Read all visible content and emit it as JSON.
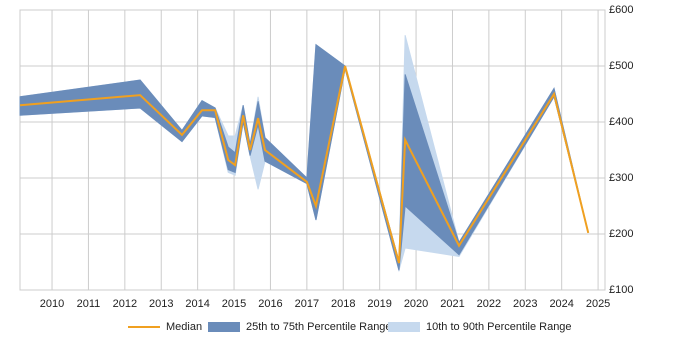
{
  "chart_data": {
    "type": "line",
    "x": [
      2009.12,
      2012.42,
      2013.57,
      2014.12,
      2014.48,
      2014.84,
      2015.03,
      2015.25,
      2015.44,
      2015.66,
      2015.85,
      2017.0,
      2017.25,
      2018.05,
      2019.53,
      2019.7,
      2021.18,
      2023.79,
      2024.73
    ],
    "series": [
      {
        "name": "10th to 90th Percentile Range",
        "color": "#c6d9ee",
        "lower": [
          412,
          425,
          365,
          411,
          408,
          310,
          305,
          400,
          340,
          280,
          330,
          290,
          225,
          495,
          135,
          175,
          160,
          445,
          202
        ],
        "upper": [
          445,
          475,
          385,
          438,
          425,
          375,
          375,
          430,
          360,
          445,
          372,
          300,
          538,
          500,
          152,
          555,
          185,
          460,
          202
        ]
      },
      {
        "name": "25th to 75th Percentile Range",
        "color": "#6a8cba",
        "lower": [
          412,
          425,
          365,
          411,
          408,
          315,
          310,
          400,
          340,
          395,
          330,
          290,
          225,
          495,
          135,
          250,
          163,
          445,
          202
        ],
        "upper": [
          445,
          475,
          385,
          438,
          425,
          355,
          345,
          430,
          360,
          437,
          372,
          300,
          538,
          500,
          152,
          485,
          185,
          460,
          202
        ]
      },
      {
        "name": "Median",
        "color": "#f0a020",
        "values": [
          430,
          448,
          377,
          421,
          421,
          332,
          323,
          412,
          350,
          407,
          350,
          293,
          250,
          500,
          148,
          368,
          179,
          450,
          202
        ]
      }
    ],
    "xlim": [
      2009.12,
      2025.19
    ],
    "xticks": [
      2010,
      2011,
      2012,
      2013,
      2014,
      2015,
      2016,
      2017,
      2018,
      2019,
      2020,
      2021,
      2022,
      2023,
      2024,
      2025
    ],
    "ylim": [
      100,
      600
    ],
    "yticks": [
      {
        "value": 100,
        "label": "£100"
      },
      {
        "value": 200,
        "label": "£200"
      },
      {
        "value": 300,
        "label": "£300"
      },
      {
        "value": 400,
        "label": "£400"
      },
      {
        "value": 500,
        "label": "£500"
      },
      {
        "value": 600,
        "label": "£600"
      }
    ],
    "grid": true,
    "legend": "bottom"
  }
}
